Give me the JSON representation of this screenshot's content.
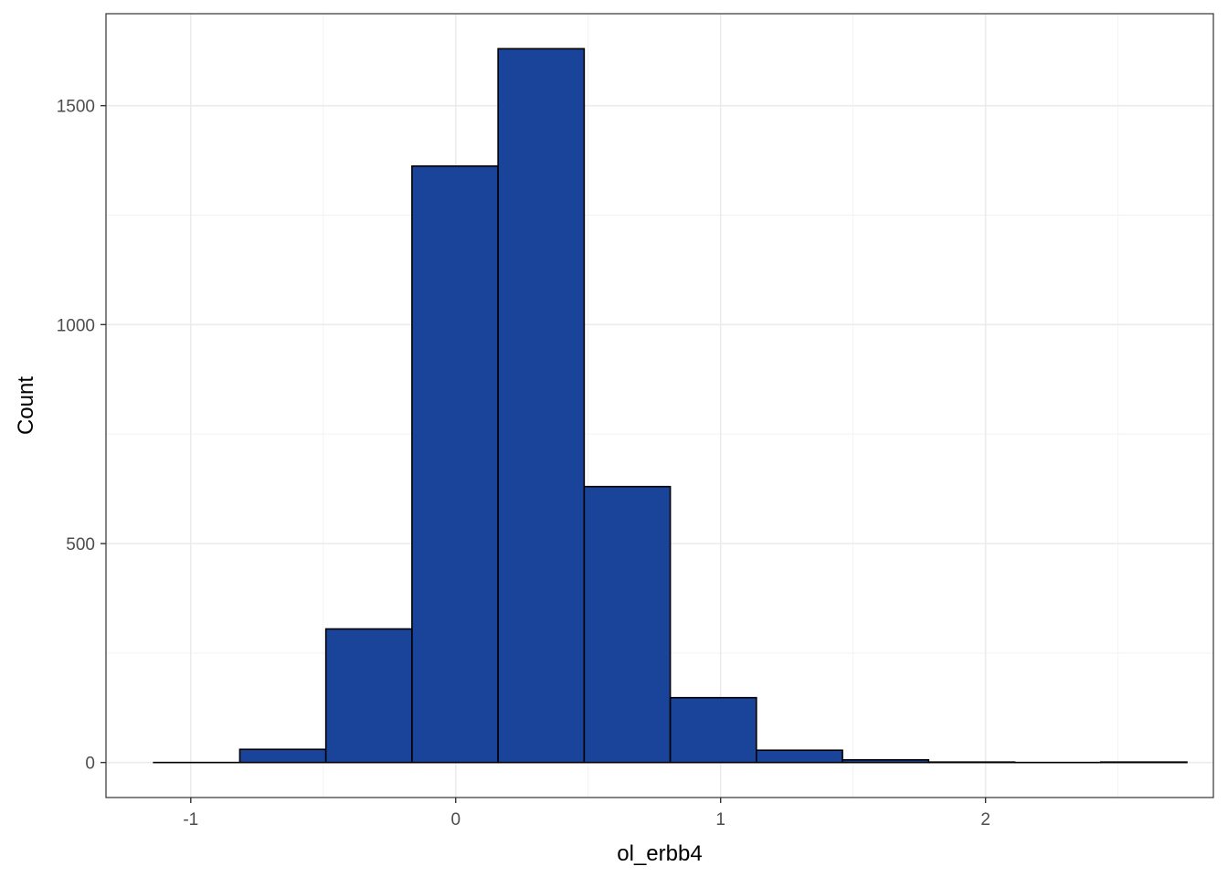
{
  "chart_data": {
    "type": "bar",
    "subtype": "histogram",
    "title": "",
    "xlabel": "ol_erbb4",
    "ylabel": "Count",
    "xlim": [
      -1.32,
      2.86
    ],
    "ylim": [
      -80,
      1710
    ],
    "x_ticks": [
      -1,
      0,
      1,
      2
    ],
    "x_tick_labels": [
      "-1",
      "0",
      "1",
      "2"
    ],
    "x_minor_ticks": [
      -0.5,
      0.5,
      1.5,
      2.5
    ],
    "y_ticks": [
      0,
      500,
      1000,
      1500
    ],
    "y_tick_labels": [
      "0",
      "500",
      "1000",
      "1500"
    ],
    "y_minor_ticks": [
      250,
      750,
      1250
    ],
    "bins": [
      {
        "x0": -1.14,
        "x1": -0.815,
        "count": 0
      },
      {
        "x0": -0.815,
        "x1": -0.49,
        "count": 30
      },
      {
        "x0": -0.49,
        "x1": -0.165,
        "count": 305
      },
      {
        "x0": -0.165,
        "x1": 0.16,
        "count": 1362
      },
      {
        "x0": 0.16,
        "x1": 0.485,
        "count": 1630
      },
      {
        "x0": 0.485,
        "x1": 0.81,
        "count": 630
      },
      {
        "x0": 0.81,
        "x1": 1.135,
        "count": 148
      },
      {
        "x0": 1.135,
        "x1": 1.46,
        "count": 28
      },
      {
        "x0": 1.46,
        "x1": 1.785,
        "count": 6
      },
      {
        "x0": 1.785,
        "x1": 2.11,
        "count": 1
      },
      {
        "x0": 2.11,
        "x1": 2.435,
        "count": 0
      },
      {
        "x0": 2.435,
        "x1": 2.76,
        "count": 1
      }
    ],
    "bar_fill": "#1A4499",
    "bar_outline": "#000000",
    "grid": true,
    "theme": "bw"
  }
}
